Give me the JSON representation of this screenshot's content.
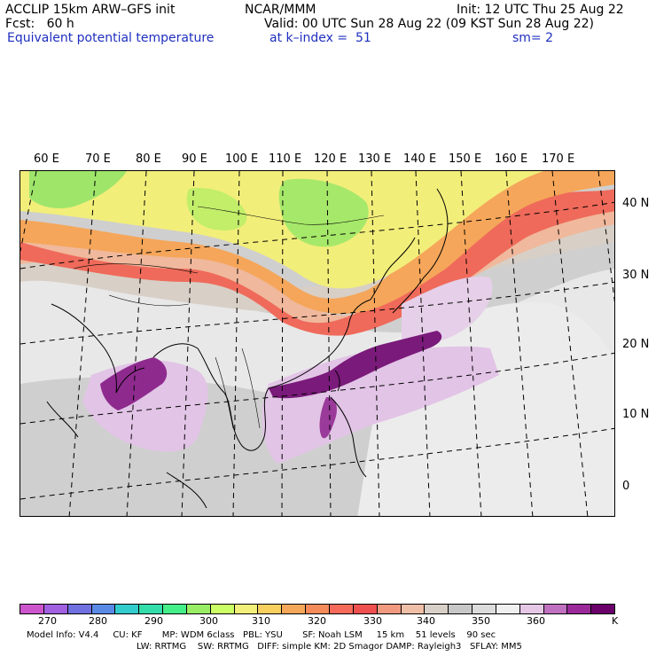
{
  "header": {
    "line1_left": "ACCLIP 15km ARW–GFS init",
    "line1_center": "NCAR/MMM",
    "line1_right": "Init: 12 UTC Thu 25 Aug 22",
    "line2_left": "Fcst:   60 h",
    "line2_right": "Valid: 00 UTC Sun 28 Aug 22 (09 KST Sun 28 Aug 22)",
    "line3_left": "Equivalent potential temperature",
    "line3_center": "at k–index =  51",
    "line3_right": "sm= 2"
  },
  "map": {
    "lon_labels": [
      "60 E",
      "70 E",
      "80 E",
      "90 E",
      "100 E",
      "110 E",
      "120 E",
      "130 E",
      "140 E",
      "150 E",
      "160 E",
      "170 E"
    ],
    "lat_labels": [
      "40 N",
      "30 N",
      "20 N",
      "10 N",
      "0"
    ]
  },
  "colorbar": {
    "unit": "K",
    "tick_labels": [
      "270",
      "280",
      "290",
      "300",
      "310",
      "320",
      "330",
      "340",
      "350",
      "360"
    ],
    "colors": [
      "#cc55cc",
      "#a060e0",
      "#7070e0",
      "#5a8ae6",
      "#33cccc",
      "#33ddaa",
      "#44ee88",
      "#99ee66",
      "#ccff66",
      "#f2f07a",
      "#f7d060",
      "#f5a85a",
      "#f58a5a",
      "#f56a5a",
      "#ee5050",
      "#f29a80",
      "#f0bfa8",
      "#d8d0c8",
      "#c8c8c8",
      "#dcdcdc",
      "#f0f0f0",
      "#e6c8e6",
      "#c070c0",
      "#9a2a9a",
      "#6a006a"
    ]
  },
  "footer": {
    "line1": "Model Info: V4.4     CU: KF       MP: WDM 6class   PBL: YSU       SF: Noah LSM     15 km    51 levels    90 sec",
    "line2": "LW: RRTMG    SW: RRTMG   DIFF: simple KM: 2D Smagor DAMP: Rayleigh3   SFLAY: MM5"
  }
}
